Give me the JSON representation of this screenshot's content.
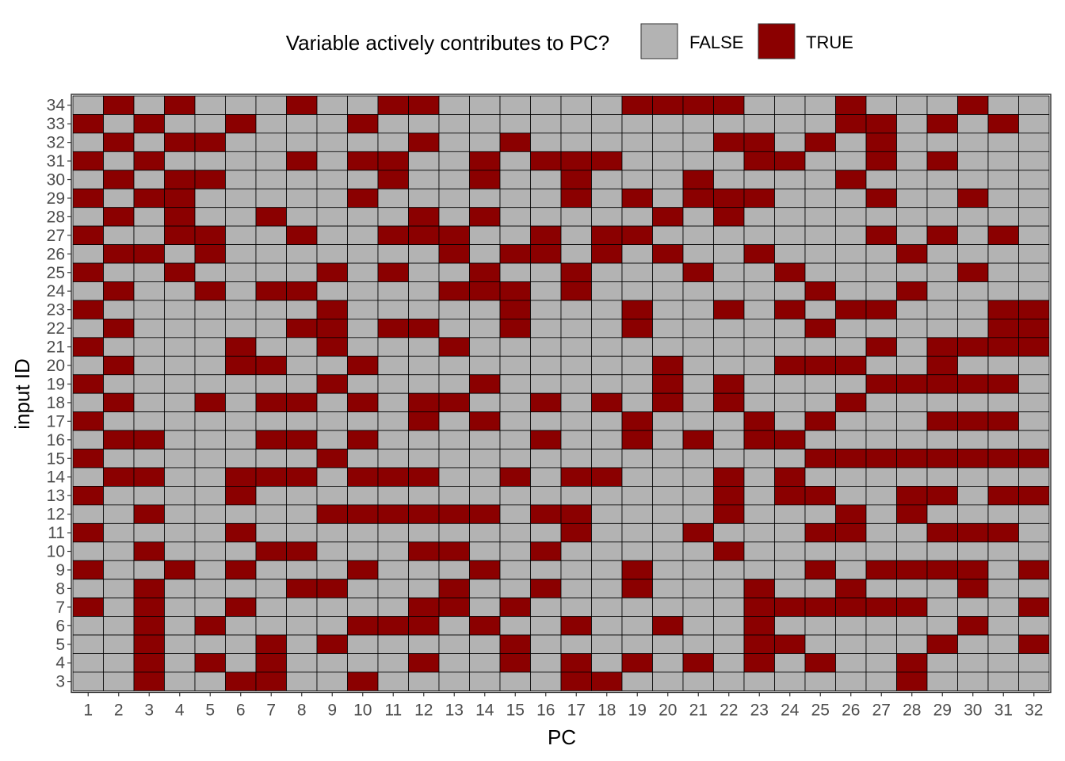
{
  "chart_data": {
    "type": "heatmap",
    "title": "",
    "xlabel": "PC",
    "ylabel": "input ID",
    "legend": {
      "title": "Variable actively contributes to PC?",
      "position": "top",
      "entries": [
        {
          "label": "FALSE",
          "color": "#b3b3b3"
        },
        {
          "label": "TRUE",
          "color": "#8b0000"
        }
      ]
    },
    "x_categories": [
      1,
      2,
      3,
      4,
      5,
      6,
      7,
      8,
      9,
      10,
      11,
      12,
      13,
      14,
      15,
      16,
      17,
      18,
      19,
      20,
      21,
      22,
      23,
      24,
      25,
      26,
      27,
      28,
      29,
      30,
      31,
      32
    ],
    "y_categories": [
      34,
      33,
      32,
      31,
      30,
      29,
      28,
      27,
      26,
      25,
      24,
      23,
      22,
      21,
      20,
      19,
      18,
      17,
      16,
      15,
      14,
      13,
      12,
      11,
      10,
      9,
      8,
      7,
      6,
      5,
      4,
      3
    ],
    "true_cells": {
      "34": [
        2,
        4,
        8,
        11,
        12,
        19,
        20,
        21,
        22,
        26,
        30
      ],
      "33": [
        1,
        3,
        6,
        10,
        26,
        27,
        29,
        31
      ],
      "32": [
        2,
        4,
        5,
        12,
        15,
        22,
        23,
        25,
        27
      ],
      "31": [
        1,
        3,
        8,
        10,
        11,
        14,
        16,
        17,
        18,
        23,
        24,
        27,
        29
      ],
      "30": [
        2,
        4,
        5,
        11,
        14,
        17,
        21,
        26
      ],
      "29": [
        1,
        3,
        4,
        10,
        17,
        19,
        21,
        22,
        23,
        27,
        30
      ],
      "28": [
        2,
        4,
        7,
        12,
        14,
        20,
        22
      ],
      "27": [
        1,
        4,
        5,
        8,
        11,
        12,
        13,
        16,
        18,
        19,
        27,
        29,
        31
      ],
      "26": [
        2,
        3,
        5,
        13,
        15,
        16,
        18,
        20,
        23,
        28
      ],
      "25": [
        1,
        4,
        9,
        11,
        14,
        17,
        21,
        24,
        30
      ],
      "24": [
        2,
        5,
        7,
        8,
        13,
        14,
        15,
        17,
        25,
        28
      ],
      "23": [
        1,
        9,
        15,
        19,
        22,
        24,
        26,
        27,
        31,
        32
      ],
      "22": [
        2,
        8,
        9,
        11,
        12,
        15,
        19,
        25,
        31,
        32
      ],
      "21": [
        1,
        6,
        9,
        13,
        27,
        29,
        30,
        31,
        32
      ],
      "20": [
        2,
        6,
        7,
        10,
        20,
        24,
        25,
        26,
        29
      ],
      "19": [
        1,
        9,
        14,
        20,
        22,
        27,
        28,
        29,
        30,
        31
      ],
      "18": [
        2,
        5,
        7,
        8,
        10,
        12,
        13,
        16,
        18,
        20,
        22,
        26
      ],
      "17": [
        1,
        12,
        14,
        19,
        23,
        25,
        29,
        30,
        31
      ],
      "16": [
        2,
        3,
        7,
        8,
        10,
        16,
        19,
        21,
        23,
        24
      ],
      "15": [
        1,
        9,
        25,
        26,
        27,
        28,
        29,
        30,
        31,
        32
      ],
      "14": [
        2,
        3,
        6,
        7,
        8,
        10,
        11,
        12,
        15,
        17,
        18,
        22,
        24
      ],
      "13": [
        1,
        6,
        22,
        24,
        25,
        28,
        29,
        31,
        32
      ],
      "12": [
        3,
        9,
        10,
        11,
        12,
        13,
        14,
        16,
        17,
        22,
        26,
        28
      ],
      "11": [
        1,
        6,
        17,
        21,
        25,
        26,
        29,
        30,
        31
      ],
      "10": [
        3,
        7,
        8,
        12,
        13,
        16,
        22
      ],
      "9": [
        1,
        4,
        6,
        10,
        14,
        19,
        25,
        27,
        28,
        29,
        30,
        32
      ],
      "8": [
        3,
        8,
        9,
        13,
        16,
        19,
        23,
        26,
        30
      ],
      "7": [
        1,
        3,
        6,
        12,
        13,
        15,
        23,
        24,
        25,
        26,
        27,
        28,
        32
      ],
      "6": [
        3,
        5,
        10,
        11,
        12,
        14,
        17,
        20,
        23,
        30
      ],
      "5": [
        3,
        7,
        9,
        15,
        23,
        24,
        29,
        32
      ],
      "4": [
        3,
        5,
        7,
        12,
        15,
        17,
        19,
        21,
        23,
        25,
        28
      ],
      "3": [
        3,
        6,
        7,
        10,
        17,
        18,
        28
      ]
    }
  }
}
